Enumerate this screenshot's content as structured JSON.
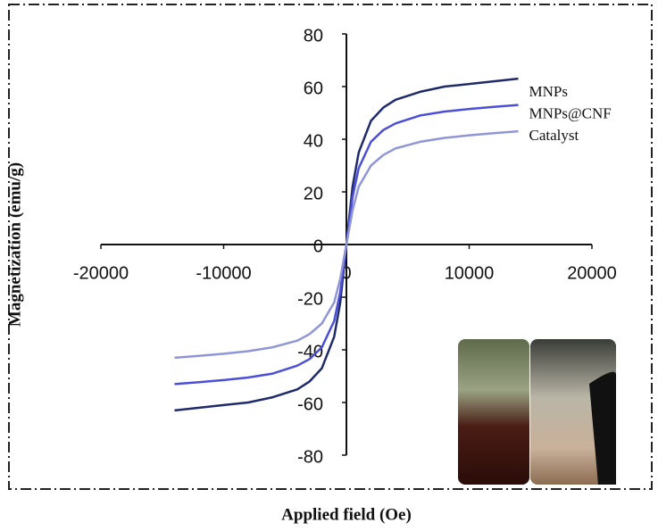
{
  "chart_data": {
    "type": "line",
    "x_label": "Applied field (Oe)",
    "y_label": "Magnetization (emu/g)",
    "x": [
      -14000,
      -12000,
      -10000,
      -8000,
      -6000,
      -4000,
      -3000,
      -2000,
      -1000,
      -500,
      0,
      500,
      1000,
      2000,
      3000,
      4000,
      6000,
      8000,
      10000,
      12000,
      14000
    ],
    "series": [
      {
        "name": "MNPs",
        "color": "#1f2a6b",
        "values": [
          -63,
          -62,
          -61,
          -60,
          -58,
          -55,
          -52,
          -47,
          -35,
          -22,
          0,
          22,
          35,
          47,
          52,
          55,
          58,
          60,
          61,
          62,
          63
        ]
      },
      {
        "name": "MNPs@CNF",
        "color": "#4b4fd8",
        "values": [
          -53,
          -52.3,
          -51.5,
          -50.5,
          -49,
          -46,
          -43.5,
          -39,
          -29,
          -18,
          0,
          18,
          29,
          39,
          43.5,
          46,
          49,
          50.5,
          51.5,
          52.3,
          53
        ]
      },
      {
        "name": "Catalyst",
        "color": "#8f95d6",
        "values": [
          -43,
          -42.3,
          -41.5,
          -40.5,
          -39,
          -36.5,
          -34,
          -30,
          -22,
          -13,
          0,
          13,
          22,
          30,
          34,
          36.5,
          39,
          40.5,
          41.5,
          42.3,
          43
        ]
      }
    ],
    "xlim": [
      -20000,
      20000
    ],
    "xticks": [
      -20000,
      -10000,
      0,
      10000,
      20000
    ],
    "ylim": [
      -80,
      80
    ],
    "yticks": [
      -80,
      -60,
      -40,
      -20,
      0,
      20,
      40,
      60,
      80
    ]
  }
}
